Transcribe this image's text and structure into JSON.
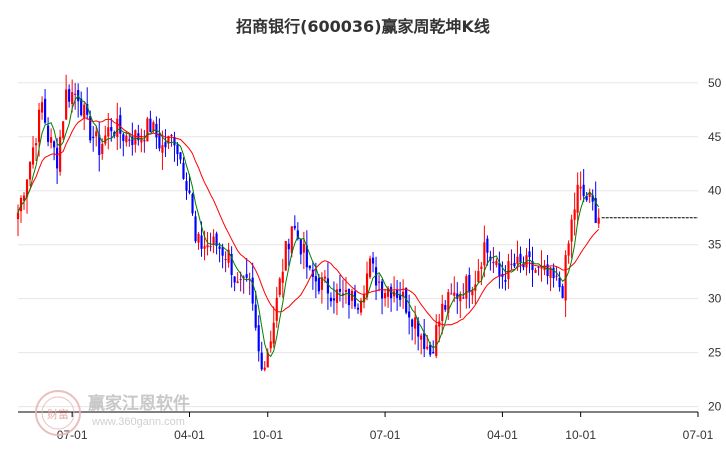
{
  "chart_data": {
    "type": "candlestick",
    "title": "招商银行(600036)赢家周乾坤K线",
    "y_ticks": [
      20,
      25,
      30,
      35,
      40,
      45,
      50
    ],
    "ylim": [
      19.5,
      53.5
    ],
    "x_ticks": [
      {
        "label": "07-01",
        "week": 18
      },
      {
        "label": "04-01",
        "week": 57
      },
      {
        "label": "10-01",
        "week": 83
      },
      {
        "label": "07-01",
        "week": 122
      },
      {
        "label": "04-01",
        "week": 161
      },
      {
        "label": "10-01",
        "week": 187
      },
      {
        "label": "07-01",
        "week": 226
      }
    ],
    "x_range": [
      0,
      226
    ],
    "current_price": 37.5,
    "colors": {
      "up": "#ff0000",
      "down": "#0000ff",
      "neutral": "#800080",
      "ma_fast": "#008000",
      "ma_slow": "#ff0000",
      "grid": "#e6e6e6",
      "axis": "#000000",
      "price_line": "#000000"
    },
    "anchors": [
      [
        0,
        38
      ],
      [
        5,
        44
      ],
      [
        8,
        48
      ],
      [
        10,
        45
      ],
      [
        13,
        43
      ],
      [
        16,
        49
      ],
      [
        20,
        49
      ],
      [
        23,
        46
      ],
      [
        27,
        44
      ],
      [
        31,
        46
      ],
      [
        36,
        45
      ],
      [
        40,
        45
      ],
      [
        44,
        46
      ],
      [
        48,
        44
      ],
      [
        52,
        45
      ],
      [
        54,
        43
      ],
      [
        57,
        40
      ],
      [
        59,
        35
      ],
      [
        62,
        35
      ],
      [
        66,
        35
      ],
      [
        70,
        34
      ],
      [
        73,
        31
      ],
      [
        77,
        31
      ],
      [
        80,
        25
      ],
      [
        82,
        24
      ],
      [
        85,
        28
      ],
      [
        88,
        33
      ],
      [
        91,
        37
      ],
      [
        94,
        35
      ],
      [
        97,
        32
      ],
      [
        103,
        31
      ],
      [
        108,
        30
      ],
      [
        113,
        30
      ],
      [
        117,
        33
      ],
      [
        121,
        31
      ],
      [
        125,
        31
      ],
      [
        128,
        30
      ],
      [
        132,
        28
      ],
      [
        137,
        25
      ],
      [
        141,
        29
      ],
      [
        144,
        30
      ],
      [
        148,
        31
      ],
      [
        152,
        32
      ],
      [
        155,
        35
      ],
      [
        160,
        32
      ],
      [
        165,
        33
      ],
      [
        170,
        33
      ],
      [
        176,
        32
      ],
      [
        181,
        31
      ],
      [
        184,
        37
      ],
      [
        186,
        40
      ],
      [
        190,
        39
      ],
      [
        193,
        37.5
      ]
    ]
  },
  "watermark": {
    "brand": "赢家江恩软件",
    "url": "www.360gann.com",
    "logo_text": "财富"
  }
}
